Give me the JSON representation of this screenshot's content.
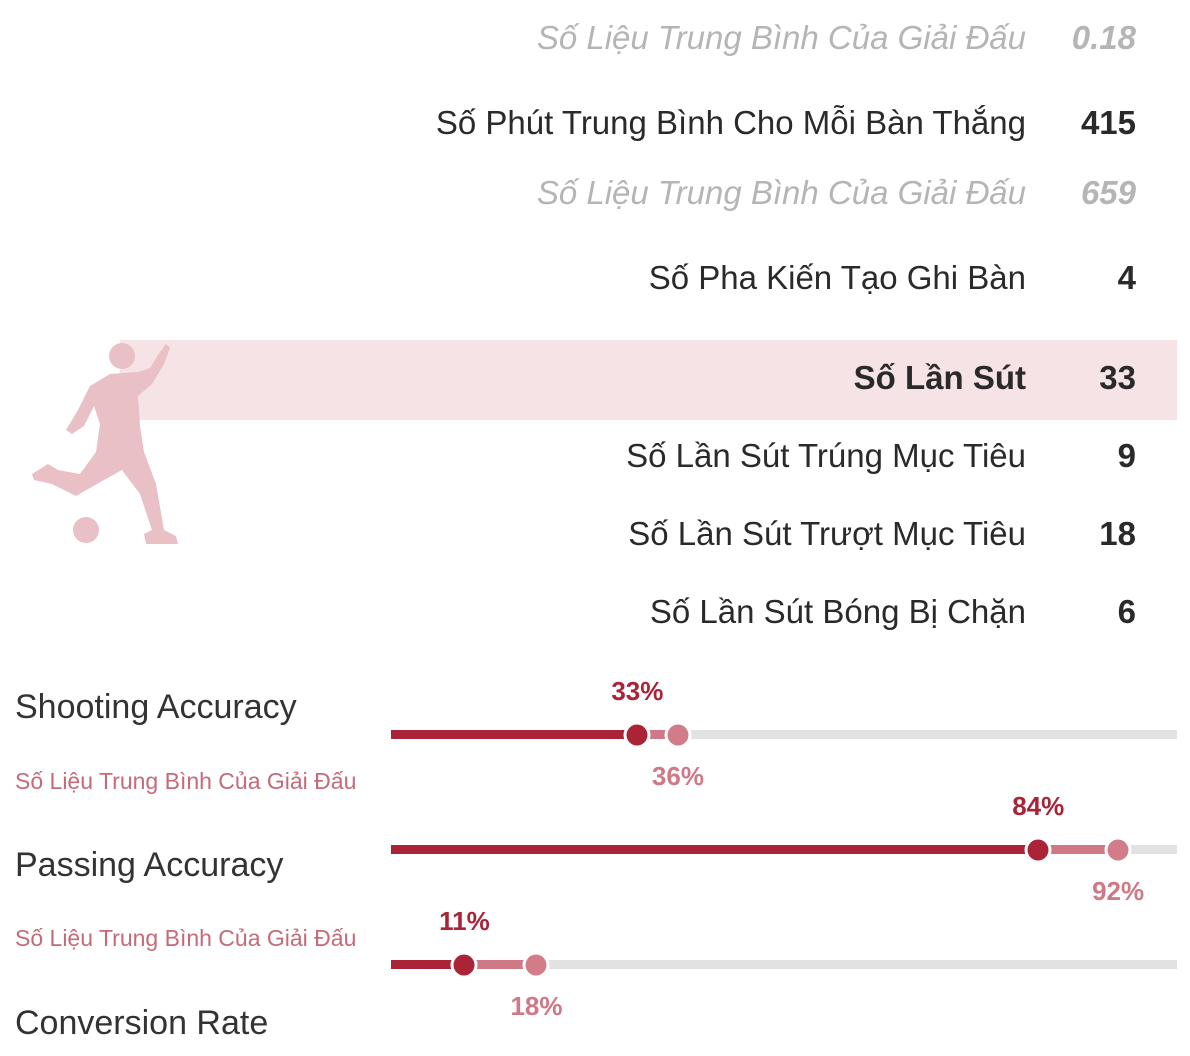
{
  "stats": {
    "gpg_avg": {
      "label": "Số Liệu Trung Bình Của Giải Đấu",
      "value": "0.18"
    },
    "minutes_per_goal": {
      "label": "Số Phút Trung Bình Cho Mỗi Bàn Thắng",
      "value": "415"
    },
    "minutes_avg": {
      "label": "Số Liệu Trung Bình Của Giải Đấu",
      "value": "659"
    },
    "assists": {
      "label": "Số Pha Kiến Tạo Ghi Bàn",
      "value": "4"
    },
    "shots": {
      "label": "Số Lần Sút",
      "value": "33"
    },
    "shots_on_target": {
      "label": "Số Lần Sút Trúng Mục Tiêu",
      "value": "9"
    },
    "shots_off_target": {
      "label": "Số Lần Sút Trượt Mục Tiêu",
      "value": "18"
    },
    "shots_blocked": {
      "label": "Số Lần Sút Bóng Bị Chặn",
      "value": "6"
    }
  },
  "accuracy": {
    "shooting": {
      "label": "Shooting Accuracy",
      "avg_label": "Số Liệu Trung Bình Của Giải Đấu",
      "value": 33,
      "value_text": "33%",
      "avg": 36,
      "avg_text": "36%"
    },
    "passing": {
      "label": "Passing Accuracy",
      "avg_label": "Số Liệu Trung Bình Của Giải Đấu",
      "value": 84,
      "value_text": "84%",
      "avg": 92,
      "avg_text": "92%"
    },
    "conversion": {
      "label": "Conversion Rate",
      "value": 11,
      "value_text": "11%",
      "avg": 18,
      "avg_text": "18%"
    }
  },
  "icons": {
    "player": "footballer-kicking-icon"
  },
  "colors": {
    "accent": "#aa2337",
    "average": "#cf7886",
    "track": "#e2e2e2",
    "highlight": "#f5e3e5",
    "muted": "#b5b5b5"
  }
}
